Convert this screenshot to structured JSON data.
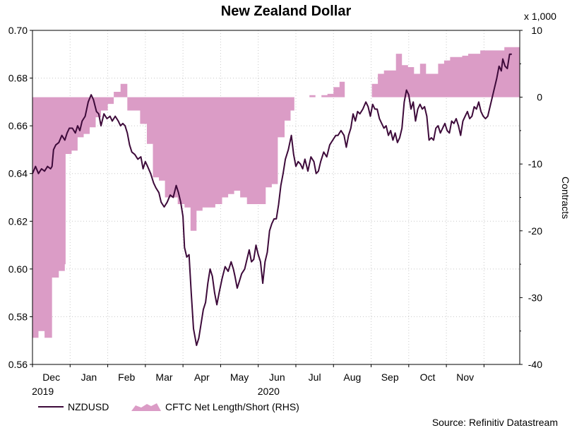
{
  "chart_data": {
    "type": "line+area",
    "title": "New Zealand Dollar",
    "source": "Source: Refinitiv Datastream",
    "left_axis": {
      "ylim": [
        0.56,
        0.7
      ],
      "ticks": [
        "0.70",
        "0.68",
        "0.66",
        "0.64",
        "0.62",
        "0.60",
        "0.58",
        "0.56"
      ],
      "tick_values": [
        0.7,
        0.68,
        0.66,
        0.64,
        0.62,
        0.6,
        0.58,
        0.56
      ]
    },
    "right_axis": {
      "label": "Contracts",
      "unit_label": "x 1,000",
      "ylim": [
        -40,
        10
      ],
      "ticks": [
        "10",
        "0",
        "-10",
        "-20",
        "-30",
        "-40"
      ],
      "tick_values": [
        10,
        0,
        -10,
        -20,
        -30,
        -40
      ]
    },
    "x_axis": {
      "range": [
        0,
        12.95
      ],
      "months": [
        {
          "label": "Dec",
          "pos": 0.5
        },
        {
          "label": "Jan",
          "pos": 1.5
        },
        {
          "label": "Feb",
          "pos": 2.5
        },
        {
          "label": "Mar",
          "pos": 3.5
        },
        {
          "label": "Apr",
          "pos": 4.5
        },
        {
          "label": "May",
          "pos": 5.5
        },
        {
          "label": "Jun",
          "pos": 6.5
        },
        {
          "label": "Jul",
          "pos": 7.5
        },
        {
          "label": "Aug",
          "pos": 8.5
        },
        {
          "label": "Sep",
          "pos": 9.5
        },
        {
          "label": "Oct",
          "pos": 10.5
        },
        {
          "label": "Nov",
          "pos": 11.5
        }
      ],
      "years": [
        {
          "label": "2019",
          "pos": 0.5
        },
        {
          "label": "2020",
          "pos": 6.5
        }
      ]
    },
    "legend": {
      "line_label": "NZDUSD",
      "area_label": "CFTC Net Length/Short (RHS)"
    },
    "colors": {
      "line": "#3d0a3a",
      "area": "#db9cc6",
      "grid": "#c8c8c8"
    },
    "series_nzdusd": {
      "name": "NZDUSD",
      "points": [
        [
          0.0,
          0.64
        ],
        [
          0.08,
          0.643
        ],
        [
          0.16,
          0.64
        ],
        [
          0.24,
          0.642
        ],
        [
          0.32,
          0.641
        ],
        [
          0.4,
          0.643
        ],
        [
          0.48,
          0.642
        ],
        [
          0.52,
          0.643
        ],
        [
          0.56,
          0.65
        ],
        [
          0.62,
          0.652
        ],
        [
          0.7,
          0.653
        ],
        [
          0.78,
          0.656
        ],
        [
          0.86,
          0.654
        ],
        [
          0.92,
          0.657
        ],
        [
          0.98,
          0.659
        ],
        [
          1.06,
          0.659
        ],
        [
          1.14,
          0.657
        ],
        [
          1.2,
          0.66
        ],
        [
          1.26,
          0.658
        ],
        [
          1.32,
          0.662
        ],
        [
          1.4,
          0.664
        ],
        [
          1.48,
          0.67
        ],
        [
          1.56,
          0.673
        ],
        [
          1.62,
          0.671
        ],
        [
          1.7,
          0.666
        ],
        [
          1.76,
          0.665
        ],
        [
          1.82,
          0.66
        ],
        [
          1.9,
          0.665
        ],
        [
          1.98,
          0.663
        ],
        [
          2.06,
          0.664
        ],
        [
          2.12,
          0.662
        ],
        [
          2.2,
          0.664
        ],
        [
          2.28,
          0.662
        ],
        [
          2.34,
          0.66
        ],
        [
          2.4,
          0.661
        ],
        [
          2.46,
          0.66
        ],
        [
          2.52,
          0.657
        ],
        [
          2.58,
          0.652
        ],
        [
          2.64,
          0.649
        ],
        [
          2.72,
          0.648
        ],
        [
          2.8,
          0.646
        ],
        [
          2.88,
          0.647
        ],
        [
          2.94,
          0.642
        ],
        [
          3.0,
          0.645
        ],
        [
          3.06,
          0.643
        ],
        [
          3.14,
          0.64
        ],
        [
          3.22,
          0.636
        ],
        [
          3.28,
          0.634
        ],
        [
          3.36,
          0.632
        ],
        [
          3.42,
          0.628
        ],
        [
          3.5,
          0.626
        ],
        [
          3.58,
          0.628
        ],
        [
          3.66,
          0.631
        ],
        [
          3.74,
          0.63
        ],
        [
          3.82,
          0.635
        ],
        [
          3.88,
          0.632
        ],
        [
          3.94,
          0.628
        ],
        [
          4.0,
          0.622
        ],
        [
          4.04,
          0.609
        ],
        [
          4.1,
          0.605
        ],
        [
          4.16,
          0.606
        ],
        [
          4.22,
          0.59
        ],
        [
          4.28,
          0.575
        ],
        [
          4.36,
          0.568
        ],
        [
          4.42,
          0.571
        ],
        [
          4.48,
          0.577
        ],
        [
          4.54,
          0.583
        ],
        [
          4.6,
          0.586
        ],
        [
          4.66,
          0.594
        ],
        [
          4.72,
          0.6
        ],
        [
          4.78,
          0.597
        ],
        [
          4.84,
          0.59
        ],
        [
          4.9,
          0.585
        ],
        [
          4.96,
          0.59
        ],
        [
          5.04,
          0.596
        ],
        [
          5.12,
          0.601
        ],
        [
          5.2,
          0.599
        ],
        [
          5.28,
          0.603
        ],
        [
          5.34,
          0.6
        ],
        [
          5.38,
          0.597
        ],
        [
          5.44,
          0.592
        ],
        [
          5.5,
          0.595
        ],
        [
          5.56,
          0.598
        ],
        [
          5.64,
          0.6
        ],
        [
          5.7,
          0.604
        ],
        [
          5.76,
          0.608
        ],
        [
          5.82,
          0.603
        ],
        [
          5.88,
          0.604
        ],
        [
          5.94,
          0.61
        ],
        [
          6.0,
          0.606
        ],
        [
          6.06,
          0.603
        ],
        [
          6.12,
          0.594
        ],
        [
          6.18,
          0.603
        ],
        [
          6.24,
          0.607
        ],
        [
          6.3,
          0.616
        ],
        [
          6.36,
          0.619
        ],
        [
          6.42,
          0.621
        ],
        [
          6.48,
          0.621
        ],
        [
          6.54,
          0.627
        ],
        [
          6.6,
          0.635
        ],
        [
          6.66,
          0.64
        ],
        [
          6.72,
          0.646
        ],
        [
          6.8,
          0.65
        ],
        [
          6.88,
          0.656
        ],
        [
          6.94,
          0.648
        ],
        [
          7.0,
          0.643
        ],
        [
          7.06,
          0.645
        ],
        [
          7.12,
          0.644
        ],
        [
          7.18,
          0.642
        ],
        [
          7.24,
          0.646
        ],
        [
          7.32,
          0.641
        ],
        [
          7.4,
          0.647
        ],
        [
          7.48,
          0.645
        ],
        [
          7.54,
          0.64
        ],
        [
          7.6,
          0.641
        ],
        [
          7.66,
          0.645
        ],
        [
          7.74,
          0.649
        ],
        [
          7.82,
          0.647
        ],
        [
          7.9,
          0.652
        ],
        [
          7.98,
          0.654
        ],
        [
          8.06,
          0.656
        ],
        [
          8.12,
          0.656
        ],
        [
          8.2,
          0.658
        ],
        [
          8.28,
          0.656
        ],
        [
          8.34,
          0.651
        ],
        [
          8.4,
          0.656
        ],
        [
          8.46,
          0.659
        ],
        [
          8.52,
          0.665
        ],
        [
          8.58,
          0.662
        ],
        [
          8.64,
          0.666
        ],
        [
          8.7,
          0.665
        ],
        [
          8.78,
          0.667
        ],
        [
          8.86,
          0.67
        ],
        [
          8.92,
          0.668
        ],
        [
          8.98,
          0.664
        ],
        [
          9.04,
          0.669
        ],
        [
          9.1,
          0.667
        ],
        [
          9.16,
          0.667
        ],
        [
          9.22,
          0.663
        ],
        [
          9.28,
          0.661
        ],
        [
          9.34,
          0.659
        ],
        [
          9.4,
          0.66
        ],
        [
          9.46,
          0.656
        ],
        [
          9.52,
          0.658
        ],
        [
          9.58,
          0.654
        ],
        [
          9.64,
          0.657
        ],
        [
          9.7,
          0.653
        ],
        [
          9.76,
          0.655
        ],
        [
          9.82,
          0.659
        ],
        [
          9.88,
          0.67
        ],
        [
          9.94,
          0.675
        ],
        [
          10.0,
          0.673
        ],
        [
          10.06,
          0.667
        ],
        [
          10.12,
          0.67
        ],
        [
          10.18,
          0.662
        ],
        [
          10.24,
          0.667
        ],
        [
          10.3,
          0.669
        ],
        [
          10.36,
          0.667
        ],
        [
          10.42,
          0.668
        ],
        [
          10.48,
          0.664
        ],
        [
          10.54,
          0.654
        ],
        [
          10.6,
          0.655
        ],
        [
          10.66,
          0.654
        ],
        [
          10.72,
          0.659
        ],
        [
          10.78,
          0.66
        ],
        [
          10.84,
          0.657
        ],
        [
          10.9,
          0.659
        ],
        [
          10.96,
          0.661
        ],
        [
          11.02,
          0.658
        ],
        [
          11.08,
          0.657
        ],
        [
          11.14,
          0.662
        ],
        [
          11.2,
          0.661
        ],
        [
          11.26,
          0.663
        ],
        [
          11.32,
          0.66
        ],
        [
          11.38,
          0.656
        ],
        [
          11.44,
          0.662
        ],
        [
          11.5,
          0.664
        ],
        [
          11.56,
          0.666
        ],
        [
          11.62,
          0.663
        ],
        [
          11.68,
          0.664
        ],
        [
          11.74,
          0.668
        ],
        [
          11.8,
          0.667
        ],
        [
          11.86,
          0.67
        ],
        [
          11.92,
          0.666
        ],
        [
          11.98,
          0.664
        ],
        [
          12.04,
          0.663
        ],
        [
          12.1,
          0.664
        ],
        [
          12.16,
          0.668
        ],
        [
          12.22,
          0.672
        ],
        [
          12.28,
          0.676
        ],
        [
          12.34,
          0.68
        ],
        [
          12.4,
          0.685
        ],
        [
          12.46,
          0.683
        ],
        [
          12.5,
          0.688
        ],
        [
          12.56,
          0.685
        ],
        [
          12.62,
          0.684
        ],
        [
          12.68,
          0.69
        ],
        [
          12.74,
          0.69
        ]
      ]
    },
    "series_cftc": {
      "name": "CFTC Net Length/Short (RHS)",
      "points": [
        [
          0.0,
          -36.0
        ],
        [
          0.16,
          -35.0
        ],
        [
          0.32,
          -36.0
        ],
        [
          0.48,
          -36.0
        ],
        [
          0.52,
          -27.0
        ],
        [
          0.7,
          -26.0
        ],
        [
          0.86,
          -25.0
        ],
        [
          0.88,
          -8.5
        ],
        [
          1.04,
          -8.0
        ],
        [
          1.2,
          -6.0
        ],
        [
          1.36,
          -5.5
        ],
        [
          1.52,
          -4.5
        ],
        [
          1.68,
          -3.0
        ],
        [
          1.82,
          -2.0
        ],
        [
          2.0,
          -1.0
        ],
        [
          2.16,
          0.8
        ],
        [
          2.34,
          2.0
        ],
        [
          2.52,
          -2.0
        ],
        [
          2.7,
          -2.0
        ],
        [
          2.86,
          -4.0
        ],
        [
          3.04,
          -7.0
        ],
        [
          3.2,
          -12.0
        ],
        [
          3.36,
          -12.5
        ],
        [
          3.52,
          -15.0
        ],
        [
          3.7,
          -15.0
        ],
        [
          3.86,
          -16.0
        ],
        [
          4.04,
          -16.5
        ],
        [
          4.2,
          -20.0
        ],
        [
          4.36,
          -17.0
        ],
        [
          4.52,
          -16.5
        ],
        [
          4.7,
          -16.5
        ],
        [
          4.86,
          -16.0
        ],
        [
          5.04,
          -15.0
        ],
        [
          5.2,
          -14.5
        ],
        [
          5.36,
          -14.0
        ],
        [
          5.52,
          -15.0
        ],
        [
          5.7,
          -16.0
        ],
        [
          5.86,
          -16.0
        ],
        [
          6.04,
          -16.0
        ],
        [
          6.2,
          -13.5
        ],
        [
          6.36,
          -13.0
        ],
        [
          6.52,
          -6.0
        ],
        [
          6.7,
          -3.5
        ],
        [
          6.86,
          -2.0
        ],
        [
          6.96,
          0.0
        ],
        [
          7.36,
          0.3
        ],
        [
          7.52,
          0.0
        ],
        [
          7.68,
          0.3
        ],
        [
          7.84,
          0.5
        ],
        [
          8.0,
          1.5
        ],
        [
          8.16,
          2.3
        ],
        [
          8.3,
          0.0
        ],
        [
          8.7,
          0.0
        ],
        [
          8.86,
          0.0
        ],
        [
          9.02,
          2.0
        ],
        [
          9.18,
          3.5
        ],
        [
          9.34,
          4.0
        ],
        [
          9.5,
          4.0
        ],
        [
          9.66,
          6.5
        ],
        [
          9.82,
          4.8
        ],
        [
          9.98,
          4.5
        ],
        [
          10.14,
          3.5
        ],
        [
          10.3,
          5.0
        ],
        [
          10.46,
          3.5
        ],
        [
          10.62,
          3.5
        ],
        [
          10.78,
          5.0
        ],
        [
          10.94,
          5.5
        ],
        [
          11.1,
          6.0
        ],
        [
          11.26,
          6.0
        ],
        [
          11.42,
          6.2
        ],
        [
          11.58,
          6.5
        ],
        [
          11.74,
          6.5
        ],
        [
          11.9,
          7.0
        ],
        [
          12.06,
          7.0
        ],
        [
          12.22,
          7.0
        ],
        [
          12.38,
          7.0
        ],
        [
          12.54,
          7.5
        ],
        [
          12.7,
          7.5
        ],
        [
          12.86,
          7.5
        ]
      ]
    }
  }
}
